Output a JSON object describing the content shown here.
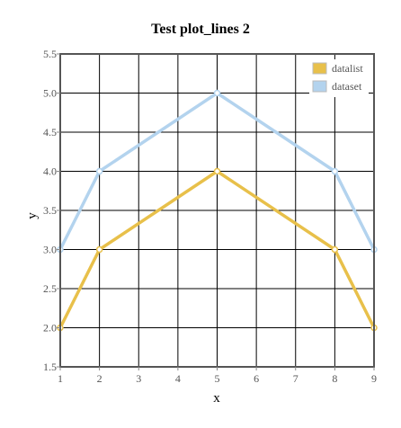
{
  "chart_data": {
    "type": "line",
    "title": "Test plot_lines 2",
    "xlabel": "x",
    "ylabel": "y",
    "xlim": [
      1,
      9
    ],
    "ylim": [
      1.5,
      5.5
    ],
    "x_ticks": [
      "1",
      "2",
      "3",
      "4",
      "5",
      "6",
      "7",
      "8",
      "9"
    ],
    "y_ticks": [
      "1.5",
      "2.0",
      "2.5",
      "3.0",
      "3.5",
      "4.0",
      "4.5",
      "5.0",
      "5.5"
    ],
    "grid": true,
    "legend_position": "top-right",
    "series": [
      {
        "name": "datalist",
        "color": "#e8c04a",
        "x": [
          1,
          2,
          5,
          8,
          9
        ],
        "y": [
          2,
          3,
          4,
          3,
          2
        ]
      },
      {
        "name": "dataset",
        "color": "#b3d3ee",
        "x": [
          1,
          2,
          5,
          8,
          9
        ],
        "y": [
          3,
          4,
          5,
          4,
          3
        ]
      }
    ]
  }
}
